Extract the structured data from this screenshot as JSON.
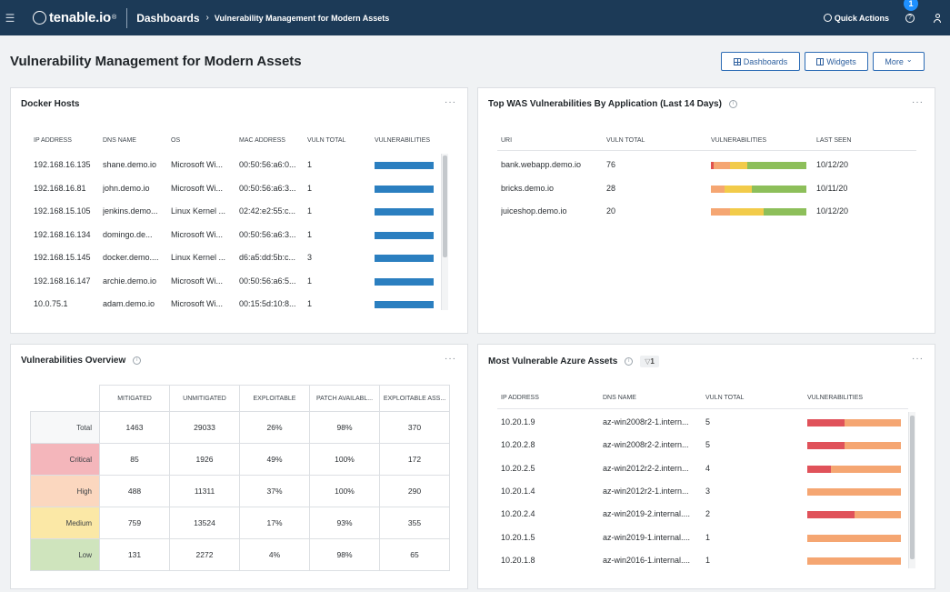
{
  "nav": {
    "brand": "tenable.io",
    "brand_mark": "®",
    "breadcrumb_root": "Dashboards",
    "breadcrumb_sep": "›",
    "breadcrumb_current": "Vulnerability Management for Modern Assets",
    "quick_actions": "Quick Actions",
    "notification_count": "1",
    "help_icon": "?"
  },
  "page": {
    "title": "Vulnerability Management for Modern Assets",
    "buttons": {
      "dashboards": "Dashboards",
      "widgets": "Widgets",
      "more": "More"
    },
    "more_caret": "⌄"
  },
  "panel_menu": "···",
  "info_glyph": "i",
  "docker": {
    "title": "Docker Hosts",
    "headers": [
      "IP ADDRESS",
      "DNS NAME",
      "OS",
      "MAC ADDRESS",
      "VULN TOTAL",
      "VULNERABILITIES"
    ],
    "rows": [
      {
        "ip": "192.168.16.135",
        "dns": "shane.demo.io",
        "os": "Microsoft Wi...",
        "mac": "00:50:56:a6:0...",
        "total": "1"
      },
      {
        "ip": "192.168.16.81",
        "dns": "john.demo.io",
        "os": "Microsoft Wi...",
        "mac": "00:50:56:a6:3...",
        "total": "1"
      },
      {
        "ip": "192.168.15.105",
        "dns": "jenkins.demo...",
        "os": "Linux Kernel ...",
        "mac": "02:42:e2:55:c...",
        "total": "1"
      },
      {
        "ip": "192.168.16.134",
        "dns": "domingo.de...",
        "os": "Microsoft Wi...",
        "mac": "00:50:56:a6:3...",
        "total": "1"
      },
      {
        "ip": "192.168.15.145",
        "dns": "docker.demo....",
        "os": "Linux Kernel ...",
        "mac": "d6:a5:dd:5b:c...",
        "total": "3"
      },
      {
        "ip": "192.168.16.147",
        "dns": "archie.demo.io",
        "os": "Microsoft Wi...",
        "mac": "00:50:56:a6:5...",
        "total": "1"
      },
      {
        "ip": "10.0.75.1",
        "dns": "adam.demo.io",
        "os": "Microsoft Wi...",
        "mac": "00:15:5d:10:8...",
        "total": "1"
      }
    ],
    "bar_color": "#2b7fc0"
  },
  "was": {
    "title": "Top WAS Vulnerabilities By Application (Last 14 Days)",
    "headers": [
      "URI",
      "VULN TOTAL",
      "VULNERABILITIES",
      "LAST SEEN"
    ],
    "rows": [
      {
        "uri": "bank.webapp.demo.io",
        "total": "76",
        "last_seen": "10/12/20",
        "segments": [
          0.03,
          0.17,
          0.18,
          0.62
        ]
      },
      {
        "uri": "bricks.demo.io",
        "total": "28",
        "last_seen": "10/11/20",
        "segments": [
          0,
          0.14,
          0.29,
          0.57
        ]
      },
      {
        "uri": "juiceshop.demo.io",
        "total": "20",
        "last_seen": "10/12/20",
        "segments": [
          0,
          0.2,
          0.35,
          0.45
        ]
      }
    ],
    "segment_colors": [
      "#e0524f",
      "#f5a672",
      "#f2cb4a",
      "#8dbf5a"
    ]
  },
  "overview": {
    "title": "Vulnerabilities Overview",
    "headers": [
      "MITIGATED",
      "UNMITIGATED",
      "EXPLOITABLE",
      "PATCH AVAILABL...",
      "EXPLOITABLE ASS..."
    ],
    "rows": [
      {
        "label": "Total",
        "color": "#f7f8f9",
        "values": [
          "1463",
          "29033",
          "26%",
          "98%",
          "370"
        ]
      },
      {
        "label": "Critical",
        "color": "#f4b6bb",
        "values": [
          "85",
          "1926",
          "49%",
          "100%",
          "172"
        ]
      },
      {
        "label": "High",
        "color": "#fbd7bf",
        "values": [
          "488",
          "11311",
          "37%",
          "100%",
          "290"
        ]
      },
      {
        "label": "Medium",
        "color": "#fbe8a6",
        "values": [
          "759",
          "13524",
          "17%",
          "93%",
          "355"
        ]
      },
      {
        "label": "Low",
        "color": "#cfe4bd",
        "values": [
          "131",
          "2272",
          "4%",
          "98%",
          "65"
        ]
      }
    ]
  },
  "azure": {
    "title": "Most Vulnerable Azure Assets",
    "filter_count": "1",
    "filter_glyph": "▽",
    "headers": [
      "IP ADDRESS",
      "DNS NAME",
      "VULN TOTAL",
      "VULNERABILITIES"
    ],
    "rows": [
      {
        "ip": "10.20.1.9",
        "dns": "az-win2008r2-1.intern...",
        "total": "5",
        "segments": [
          0.4,
          0.6
        ]
      },
      {
        "ip": "10.20.2.8",
        "dns": "az-win2008r2-2.intern...",
        "total": "5",
        "segments": [
          0.4,
          0.6
        ]
      },
      {
        "ip": "10.20.2.5",
        "dns": "az-win2012r2-2.intern...",
        "total": "4",
        "segments": [
          0.25,
          0.75
        ]
      },
      {
        "ip": "10.20.1.4",
        "dns": "az-win2012r2-1.intern...",
        "total": "3",
        "segments": [
          0,
          1
        ]
      },
      {
        "ip": "10.20.2.4",
        "dns": "az-win2019-2.internal....",
        "total": "2",
        "segments": [
          0.5,
          0.5
        ]
      },
      {
        "ip": "10.20.1.5",
        "dns": "az-win2019-1.internal....",
        "total": "1",
        "segments": [
          0,
          1
        ]
      },
      {
        "ip": "10.20.1.8",
        "dns": "az-win2016-1.internal....",
        "total": "1",
        "segments": [
          0,
          1
        ]
      }
    ],
    "segment_colors": [
      "#e0525a",
      "#f5a672"
    ]
  }
}
